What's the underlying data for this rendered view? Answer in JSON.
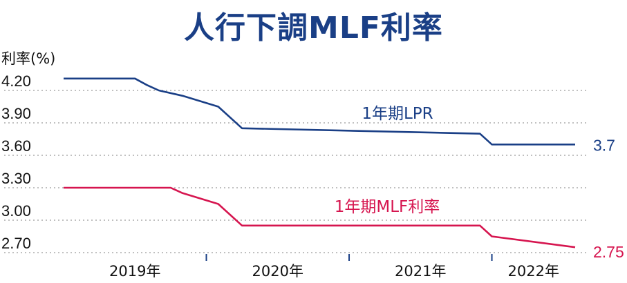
{
  "chart_data": {
    "type": "line",
    "title": "人行下調MLF利率",
    "ylabel": "利率(%)",
    "ylim": [
      2.7,
      4.2
    ],
    "yticks": [
      "4.20",
      "3.90",
      "3.60",
      "3.30",
      "3.00",
      "2.70"
    ],
    "xticks": [
      "2019年",
      "2020年",
      "2021年",
      "2022年"
    ],
    "x_range": [
      "2019-01",
      "2022-08"
    ],
    "grid": "horizontal dotted",
    "series": [
      {
        "name": "1年期LPR",
        "color": "#1a3f86",
        "end_label": "3.7",
        "points": [
          [
            "2019-01",
            4.31
          ],
          [
            "2019-07",
            4.31
          ],
          [
            "2019-08",
            4.25
          ],
          [
            "2019-09",
            4.2
          ],
          [
            "2019-11",
            4.15
          ],
          [
            "2020-02",
            4.05
          ],
          [
            "2020-04",
            3.85
          ],
          [
            "2021-12",
            3.8
          ],
          [
            "2022-01",
            3.7
          ],
          [
            "2022-08",
            3.7
          ]
        ]
      },
      {
        "name": "1年期MLF利率",
        "color": "#d6154f",
        "end_label": "2.75",
        "points": [
          [
            "2019-01",
            3.3
          ],
          [
            "2019-10",
            3.3
          ],
          [
            "2019-11",
            3.25
          ],
          [
            "2020-02",
            3.15
          ],
          [
            "2020-04",
            2.95
          ],
          [
            "2021-12",
            2.95
          ],
          [
            "2022-01",
            2.85
          ],
          [
            "2022-08",
            2.75
          ]
        ]
      }
    ]
  }
}
